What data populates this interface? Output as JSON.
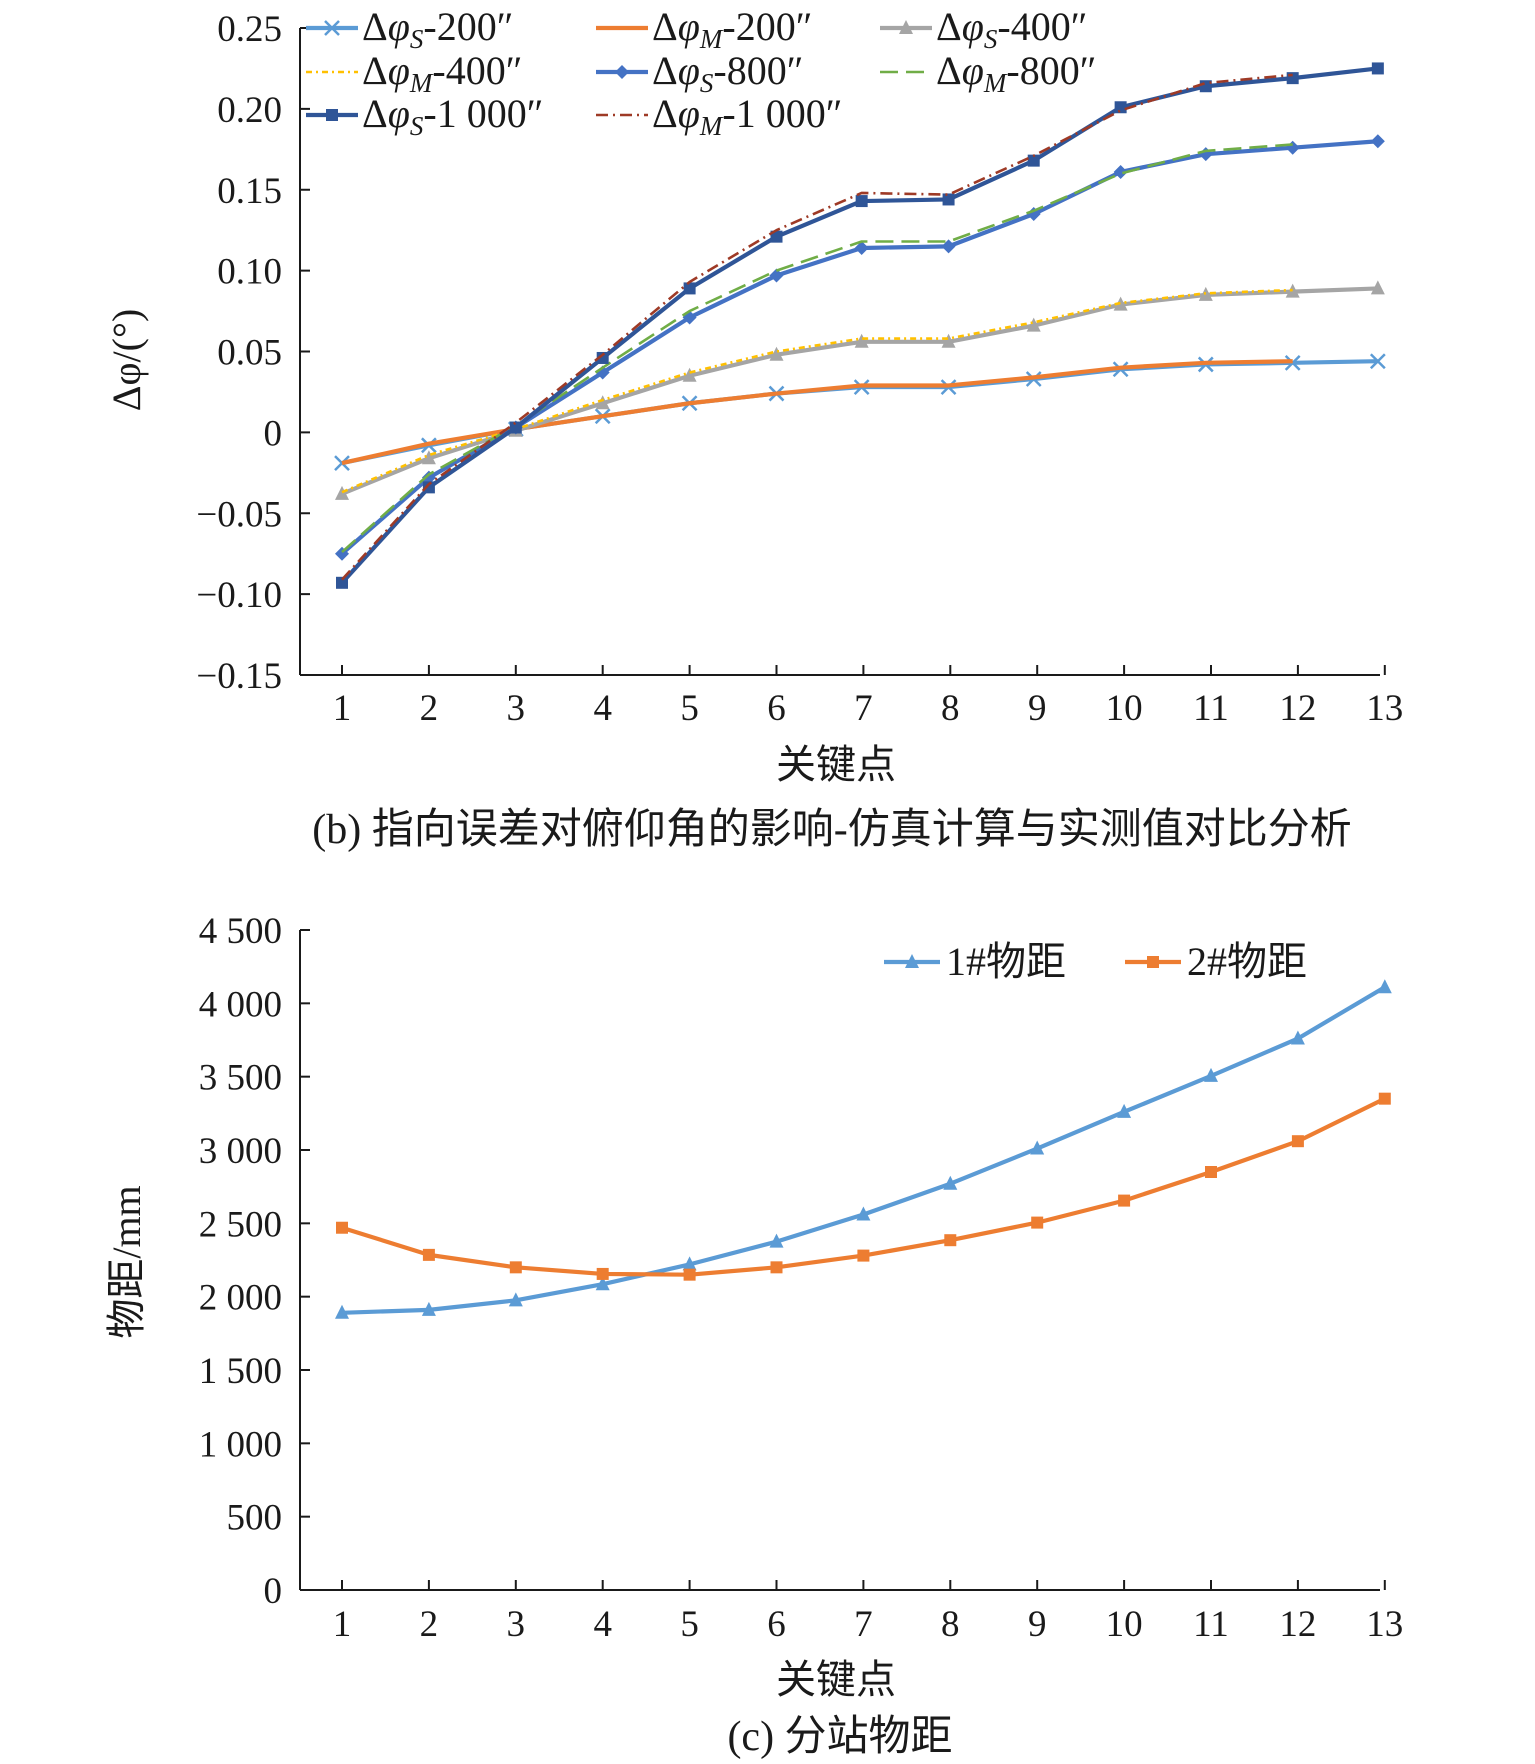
{
  "chart_data": [
    {
      "type": "line",
      "caption": "(b) 指向误差对俯仰角的影响-仿真计算与实测值对比分析",
      "xlabel": "关键点",
      "ylabel": "Δφ/(°)",
      "categories": [
        "1",
        "2",
        "3",
        "4",
        "5",
        "6",
        "7",
        "8",
        "9",
        "10",
        "11",
        "12",
        "13"
      ],
      "ylim": [
        -0.15,
        0.25
      ],
      "yticks": [
        "−0.15",
        "−0.10",
        "−0.05",
        "0",
        "0.05",
        "0.10",
        "0.15",
        "0.20",
        "0.25"
      ],
      "legend_position": "top-left",
      "series": [
        {
          "name": "Δφ_S-200″",
          "label_main": "Δφ",
          "label_sub": "S",
          "label_suffix": "-200″",
          "color": "#5b9bd5",
          "dash": "",
          "marker": "x",
          "x": [
            1,
            2,
            3,
            4,
            5,
            6,
            6.98,
            7.98,
            8.96,
            9.96,
            10.94,
            11.94,
            12.92
          ],
          "values": [
            -0.019,
            -0.008,
            0.002,
            0.01,
            0.018,
            0.024,
            0.028,
            0.028,
            0.033,
            0.039,
            0.042,
            0.043,
            0.044
          ]
        },
        {
          "name": "Δφ_M-200″",
          "label_main": "Δφ",
          "label_sub": "M",
          "label_suffix": "-200″",
          "color": "#ed7d31",
          "dash": "",
          "marker": "none",
          "x": [
            1,
            2,
            3,
            4,
            5,
            6,
            6.98,
            7.98,
            8.96,
            9.96,
            10.94,
            11.94
          ],
          "values": [
            -0.019,
            -0.007,
            0.002,
            0.01,
            0.018,
            0.024,
            0.029,
            0.029,
            0.034,
            0.04,
            0.043,
            0.044
          ]
        },
        {
          "name": "Δφ_S-400″",
          "label_main": "Δφ",
          "label_sub": "S",
          "label_suffix": "-400″",
          "color": "#a5a5a5",
          "dash": "",
          "marker": "triangle",
          "x": [
            1,
            2,
            3,
            4,
            5,
            6,
            6.98,
            7.98,
            8.96,
            9.96,
            10.94,
            11.94,
            12.92
          ],
          "values": [
            -0.038,
            -0.016,
            0.001,
            0.018,
            0.035,
            0.048,
            0.056,
            0.056,
            0.066,
            0.079,
            0.085,
            0.087,
            0.089
          ]
        },
        {
          "name": "Δφ_M-400″",
          "label_main": "Δφ",
          "label_sub": "M",
          "label_suffix": "-400″",
          "color": "#ffc000",
          "dash": "6,4,2,4",
          "marker": "none",
          "x": [
            1,
            2,
            3,
            4,
            5,
            6,
            6.98,
            7.98,
            8.96,
            9.96,
            10.94,
            11.94
          ],
          "values": [
            -0.037,
            -0.014,
            0.002,
            0.02,
            0.037,
            0.05,
            0.058,
            0.058,
            0.068,
            0.08,
            0.086,
            0.088
          ]
        },
        {
          "name": "Δφ_S-800″",
          "label_main": "Δφ",
          "label_sub": "S",
          "label_suffix": "-800″",
          "color": "#4472c4",
          "dash": "",
          "marker": "diamond",
          "x": [
            1,
            2,
            3,
            4,
            5,
            6,
            6.98,
            7.98,
            8.96,
            9.96,
            10.94,
            11.94,
            12.92
          ],
          "values": [
            -0.075,
            -0.028,
            0.003,
            0.037,
            0.071,
            0.097,
            0.114,
            0.115,
            0.135,
            0.161,
            0.172,
            0.176,
            0.18
          ]
        },
        {
          "name": "Δφ_M-800″",
          "label_main": "Δφ",
          "label_sub": "M",
          "label_suffix": "-800″",
          "color": "#70ad47",
          "dash": "18,8",
          "marker": "none",
          "x": [
            1,
            2,
            3,
            4,
            5,
            6,
            6.98,
            7.98,
            8.96,
            9.96,
            10.94,
            11.94
          ],
          "values": [
            -0.074,
            -0.026,
            0.004,
            0.04,
            0.075,
            0.1,
            0.118,
            0.118,
            0.137,
            0.16,
            0.174,
            0.178
          ]
        },
        {
          "name": "Δφ_S-1 000″",
          "label_main": "Δφ",
          "label_sub": "S",
          "label_suffix": "-1 000″",
          "color": "#2f5597",
          "dash": "",
          "marker": "square",
          "x": [
            1,
            2,
            3,
            4,
            5,
            6,
            6.98,
            7.98,
            8.96,
            9.96,
            10.94,
            11.94,
            12.92
          ],
          "values": [
            -0.093,
            -0.034,
            0.003,
            0.046,
            0.089,
            0.121,
            0.143,
            0.144,
            0.168,
            0.201,
            0.214,
            0.219,
            0.225
          ]
        },
        {
          "name": "Δφ_M-1 000″",
          "label_main": "Δφ",
          "label_sub": "M",
          "label_suffix": "-1 000″",
          "color": "#9e3a26",
          "dash": "12,5,2,5",
          "marker": "none",
          "x": [
            1,
            2,
            3,
            4,
            5,
            6,
            6.98,
            7.98,
            8.96,
            9.96,
            10.94,
            11.94
          ],
          "values": [
            -0.091,
            -0.032,
            0.006,
            0.048,
            0.093,
            0.125,
            0.148,
            0.147,
            0.171,
            0.199,
            0.216,
            0.221
          ]
        }
      ]
    },
    {
      "type": "line",
      "caption": "(c) 分站物距",
      "xlabel": "关键点",
      "ylabel": "物距/mm",
      "categories": [
        "1",
        "2",
        "3",
        "4",
        "5",
        "6",
        "7",
        "8",
        "9",
        "10",
        "11",
        "12",
        "13"
      ],
      "ylim": [
        0,
        4500
      ],
      "yticks": [
        "0",
        "500",
        "1 000",
        "1 500",
        "2 000",
        "2 500",
        "3 000",
        "3 500",
        "4 000",
        "4 500"
      ],
      "legend_position": "top-right",
      "series": [
        {
          "name": "1#物距",
          "color": "#5b9bd5",
          "marker": "triangle",
          "values": [
            1890,
            1910,
            1975,
            2085,
            2220,
            2375,
            2560,
            2770,
            3010,
            3260,
            3505,
            3760,
            4110
          ]
        },
        {
          "name": "2#物距",
          "color": "#ed7d31",
          "marker": "square",
          "values": [
            2470,
            2285,
            2200,
            2155,
            2150,
            2200,
            2280,
            2385,
            2505,
            2655,
            2850,
            3060,
            3350
          ]
        }
      ]
    }
  ]
}
